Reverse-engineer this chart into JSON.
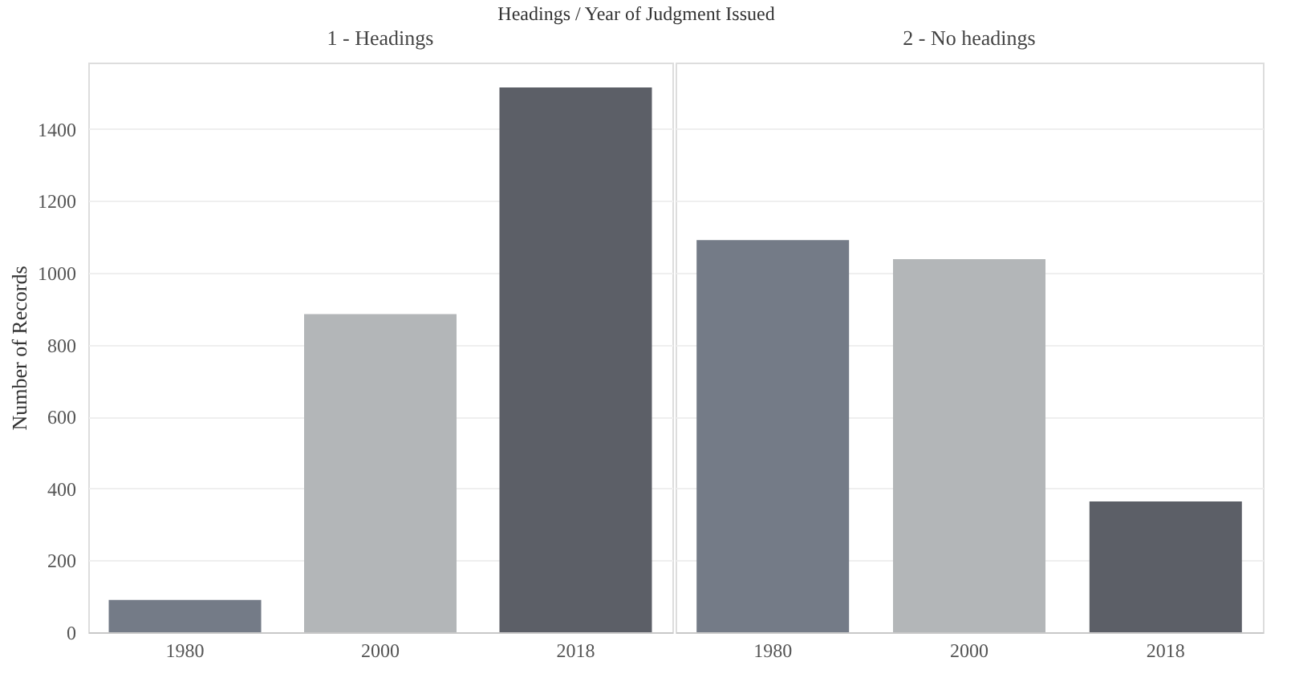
{
  "chart_data": [
    {
      "type": "bar",
      "title": "1 - Headings",
      "annotations": [
        "Headings / Year of Judgment Issued"
      ],
      "ylabel": "Number of Records",
      "categories": [
        "1980",
        "2000",
        "2018"
      ],
      "values": [
        90,
        885,
        1516
      ],
      "colors": [
        "#747b87",
        "#b3b6b8",
        "#5c5f67"
      ],
      "ylim": [
        0,
        1585
      ],
      "yticks": [
        0,
        200,
        400,
        600,
        800,
        1000,
        1200,
        1400
      ],
      "grid": "y"
    },
    {
      "type": "bar",
      "title": "2 - No headings",
      "categories": [
        "1980",
        "2000",
        "2018"
      ],
      "values": [
        1091,
        1038,
        364
      ],
      "colors": [
        "#747b87",
        "#b3b6b8",
        "#5c5f67"
      ],
      "ylim": [
        0,
        1585
      ],
      "yticks": [
        0,
        200,
        400,
        600,
        800,
        1000,
        1200,
        1400
      ],
      "grid": "y",
      "tick_labels": "x"
    }
  ]
}
